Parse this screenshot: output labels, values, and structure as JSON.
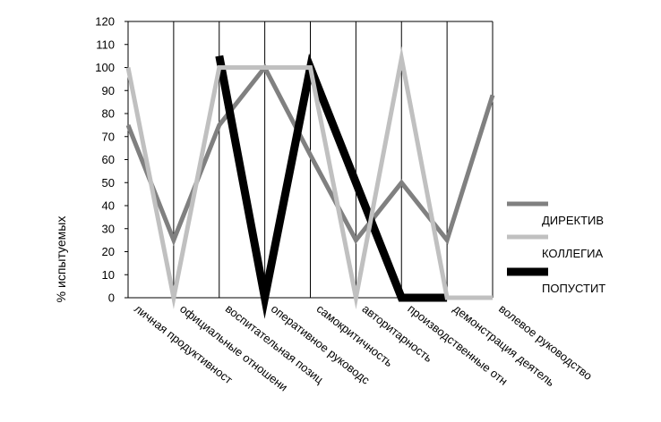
{
  "chart_data": {
    "type": "line",
    "title": "",
    "xlabel": "",
    "ylabel": "% испытуемых",
    "ylim": [
      0,
      120
    ],
    "yticks": [
      0,
      10,
      20,
      30,
      40,
      50,
      60,
      70,
      80,
      90,
      100,
      110,
      120
    ],
    "grid": "vertical",
    "legend_position": "right",
    "categories": [
      "личная продуктивност",
      "официальные отношени",
      "воспитательная позиц",
      "оперативное руководс",
      "самокритичность",
      "авторитарность",
      "производственные отн",
      "демонстрация деятель",
      "волевое руководство"
    ],
    "series": [
      {
        "name": "ДИРЕКТИВ",
        "color": "#808080",
        "values": [
          75,
          25,
          75,
          100,
          62,
          25,
          50,
          25,
          88
        ]
      },
      {
        "name": "КОЛЛЕГИА",
        "color": "#c0c0c0",
        "values": [
          100,
          0,
          100,
          100,
          100,
          0,
          104,
          0,
          0
        ]
      },
      {
        "name": "ПОПУСТИТ",
        "color": "#000000",
        "values": [
          null,
          null,
          105,
          0,
          100,
          50,
          0,
          0,
          null
        ]
      }
    ]
  }
}
